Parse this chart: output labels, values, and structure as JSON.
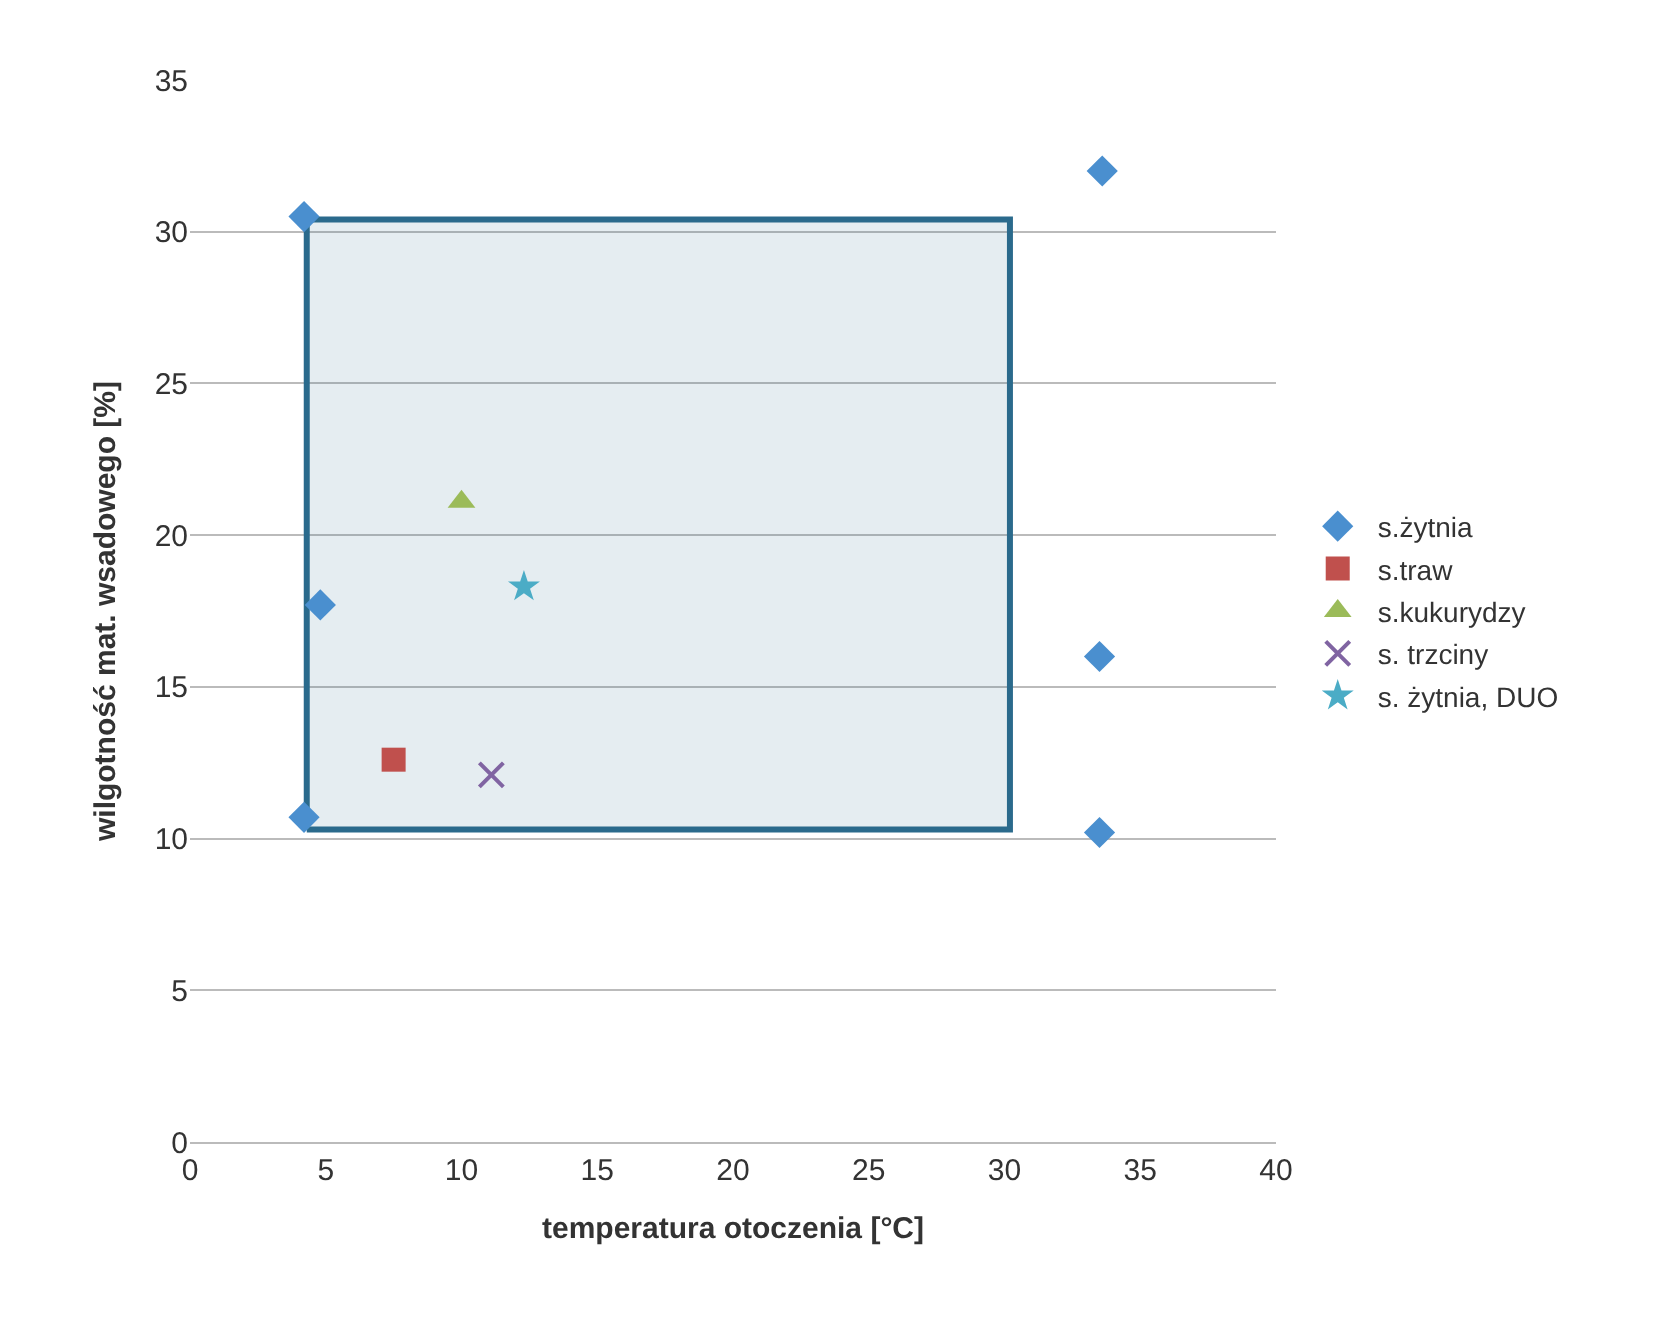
{
  "chart_data": {
    "type": "scatter",
    "xlabel": "temperatura otoczenia [°C]",
    "ylabel": "wilgotność mat. wsadowego [%]",
    "xlim": [
      0,
      40
    ],
    "xticks": [
      0,
      5,
      10,
      15,
      20,
      25,
      30,
      35,
      40
    ],
    "ylim": [
      0,
      35
    ],
    "yticks": [
      0,
      5,
      10,
      15,
      20,
      25,
      30,
      35
    ],
    "grid": "y",
    "legend": "right",
    "series": [
      {
        "type": "area",
        "color": "#2a6a8c",
        "x": [
          4.3,
          30.2,
          30.2,
          4.3,
          4.3
        ],
        "values": [
          10.3,
          10.3,
          30.4,
          30.4,
          10.3
        ]
      },
      {
        "name": "s.żytnia",
        "color": "#4a8fcf",
        "marker": "diamond",
        "x": [
          4.2,
          4.8,
          4.2,
          33.6,
          33.5,
          33.5
        ],
        "values": [
          30.5,
          17.7,
          10.7,
          32.0,
          16.0,
          10.2
        ]
      },
      {
        "name": "s.traw",
        "color": "#c0504d",
        "marker": "square",
        "x": [
          7.5
        ],
        "values": [
          12.6
        ]
      },
      {
        "name": "s.kukurydzy",
        "color": "#9bbb59",
        "marker": "triangle",
        "x": [
          10.0
        ],
        "values": [
          21.1
        ]
      },
      {
        "name": "s. trzciny",
        "color": "#8064a2",
        "marker": "cross",
        "x": [
          11.1
        ],
        "values": [
          12.1
        ]
      },
      {
        "name": "s. żytnia, DUO",
        "color": "#4bacc6",
        "marker": "star",
        "x": [
          12.3
        ],
        "values": [
          18.3
        ]
      }
    ]
  }
}
